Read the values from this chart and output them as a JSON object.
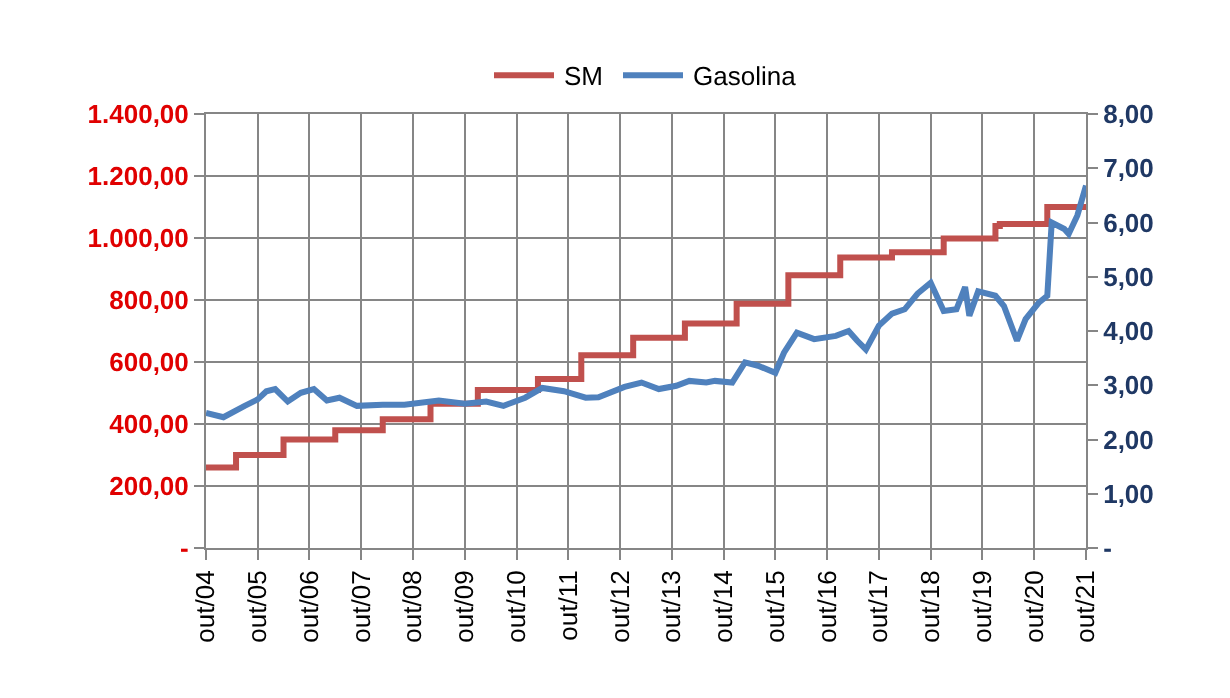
{
  "chart_data": {
    "type": "line",
    "legend": "top",
    "grid": true,
    "xlim": [
      "2004-10",
      "2021-10"
    ],
    "xticks": [
      {
        "value": "2004-10",
        "label": "out/04"
      },
      {
        "value": "2005-10",
        "label": "out/05"
      },
      {
        "value": "2006-10",
        "label": "out/06"
      },
      {
        "value": "2007-10",
        "label": "out/07"
      },
      {
        "value": "2008-10",
        "label": "out/08"
      },
      {
        "value": "2009-10",
        "label": "out/09"
      },
      {
        "value": "2010-10",
        "label": "out/10"
      },
      {
        "value": "2011-10",
        "label": "out/11"
      },
      {
        "value": "2012-10",
        "label": "out/12"
      },
      {
        "value": "2013-10",
        "label": "out/13"
      },
      {
        "value": "2014-10",
        "label": "out/14"
      },
      {
        "value": "2015-10",
        "label": "out/15"
      },
      {
        "value": "2016-10",
        "label": "out/16"
      },
      {
        "value": "2017-10",
        "label": "out/17"
      },
      {
        "value": "2018-10",
        "label": "out/18"
      },
      {
        "value": "2019-10",
        "label": "out/19"
      },
      {
        "value": "2020-10",
        "label": "out/20"
      },
      {
        "value": "2021-10",
        "label": "out/21"
      }
    ],
    "ylim": [
      0,
      1400
    ],
    "yticks": [
      {
        "value": 0,
        "label": "-"
      },
      {
        "value": 200,
        "label": "200,00"
      },
      {
        "value": 400,
        "label": "400,00"
      },
      {
        "value": 600,
        "label": "600,00"
      },
      {
        "value": 800,
        "label": "800,00"
      },
      {
        "value": 1000,
        "label": "1.000,00"
      },
      {
        "value": 1200,
        "label": "1.200,00"
      },
      {
        "value": 1400,
        "label": "1.400,00"
      }
    ],
    "y2lim": [
      0,
      8
    ],
    "y2ticks": [
      {
        "value": 0,
        "label": "-"
      },
      {
        "value": 1,
        "label": "1,00"
      },
      {
        "value": 2,
        "label": "2,00"
      },
      {
        "value": 3,
        "label": "3,00"
      },
      {
        "value": 4,
        "label": "4,00"
      },
      {
        "value": 5,
        "label": "5,00"
      },
      {
        "value": 6,
        "label": "6,00"
      },
      {
        "value": 7,
        "label": "7,00"
      },
      {
        "value": 8,
        "label": "8,00"
      }
    ],
    "series": [
      {
        "name": "SM",
        "type": "step",
        "color": "#c0504d",
        "x": [
          "2004-10",
          "2005-05",
          "2006-04",
          "2007-04",
          "2008-03",
          "2009-02",
          "2010-01",
          "2011-03",
          "2012-01",
          "2013-01",
          "2014-01",
          "2015-01",
          "2016-01",
          "2017-01",
          "2018-01",
          "2019-01",
          "2020-01",
          "2020-02",
          "2021-01",
          "2021-10"
        ],
        "values": [
          260,
          300,
          350,
          380,
          415,
          465,
          510,
          545,
          622,
          678,
          724,
          788,
          880,
          937,
          954,
          998,
          1039,
          1045,
          1100,
          1100
        ]
      },
      {
        "name": "Gasolina",
        "type": "line",
        "axis": "y2",
        "color": "#4f81bd",
        "x": [
          "2004-10",
          "2005-02",
          "2005-07",
          "2005-10",
          "2005-12",
          "2006-02",
          "2006-05",
          "2006-08",
          "2006-11",
          "2007-02",
          "2007-05",
          "2007-09",
          "2008-03",
          "2008-08",
          "2009-04",
          "2009-10",
          "2010-03",
          "2010-07",
          "2010-12",
          "2011-04",
          "2011-09",
          "2012-02",
          "2012-05",
          "2012-11",
          "2013-03",
          "2013-07",
          "2013-11",
          "2014-02",
          "2014-06",
          "2014-08",
          "2014-12",
          "2015-03",
          "2015-06",
          "2015-10",
          "2015-12",
          "2016-03",
          "2016-07",
          "2016-12",
          "2017-03",
          "2017-05",
          "2017-07",
          "2017-10",
          "2018-01",
          "2018-04",
          "2018-07",
          "2018-10",
          "2019-01",
          "2019-04",
          "2019-06",
          "2019-07",
          "2019-09",
          "2020-01",
          "2020-03",
          "2020-06",
          "2020-08",
          "2020-11",
          "2021-01",
          "2021-02",
          "2021-05",
          "2021-06",
          "2021-08",
          "2021-10"
        ],
        "values": [
          2.49,
          2.41,
          2.62,
          2.74,
          2.89,
          2.93,
          2.7,
          2.86,
          2.93,
          2.72,
          2.77,
          2.62,
          2.64,
          2.64,
          2.72,
          2.66,
          2.7,
          2.62,
          2.77,
          2.95,
          2.89,
          2.77,
          2.78,
          2.97,
          3.05,
          2.93,
          2.99,
          3.08,
          3.05,
          3.08,
          3.05,
          3.42,
          3.36,
          3.23,
          3.6,
          3.97,
          3.85,
          3.91,
          4.0,
          3.82,
          3.66,
          4.1,
          4.32,
          4.4,
          4.69,
          4.89,
          4.37,
          4.4,
          4.81,
          4.28,
          4.73,
          4.65,
          4.46,
          3.82,
          4.22,
          4.52,
          4.65,
          6.0,
          5.88,
          5.79,
          6.13,
          6.68
        ]
      }
    ]
  }
}
